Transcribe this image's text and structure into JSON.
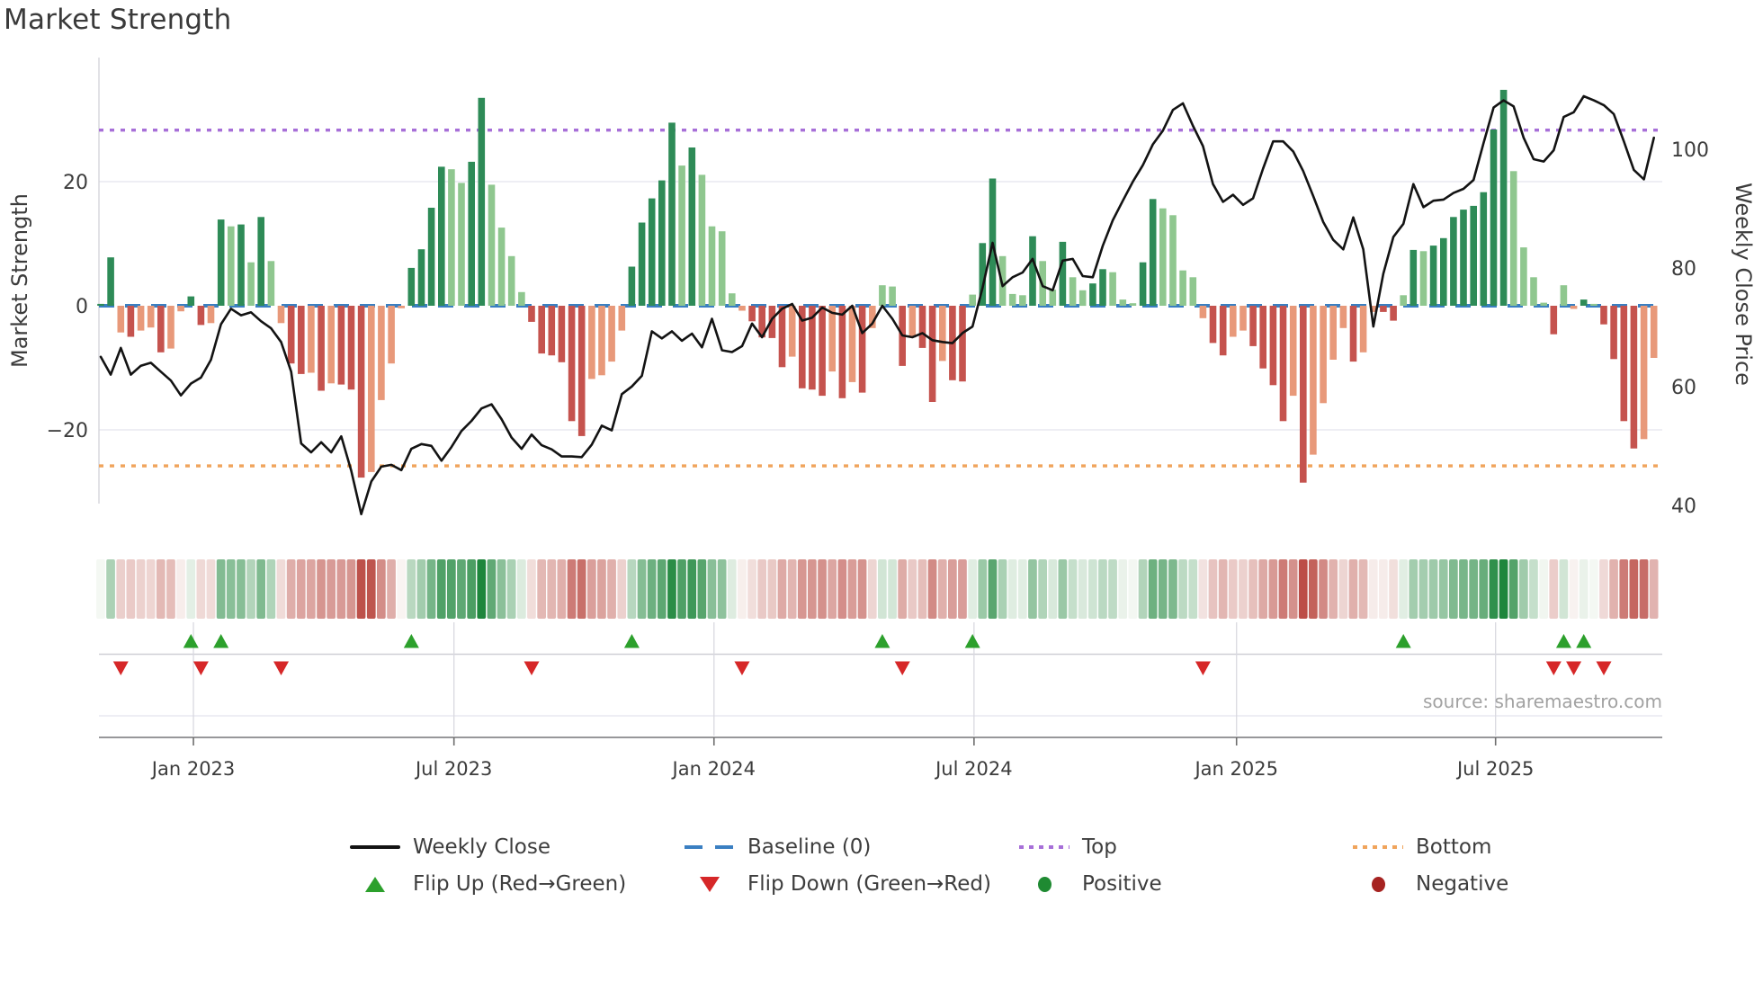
{
  "title": "Market Strength",
  "source": "source: sharemaestro.com",
  "axes": {
    "left_label": "Market Strength",
    "right_label": "Weekly Close Price",
    "left_ticks": [
      "20",
      "0",
      "−20"
    ],
    "right_ticks": [
      "100",
      "80",
      "60",
      "40"
    ],
    "x_ticks": [
      "Jan 2023",
      "Jul 2023",
      "Jan 2024",
      "Jul 2024",
      "Jan 2025",
      "Jul 2025"
    ]
  },
  "legend": {
    "weekly_close": "Weekly Close",
    "baseline": "Baseline (0)",
    "top": "Top",
    "bottom": "Bottom",
    "flip_up": "Flip Up (Red→Green)",
    "flip_down": "Flip Down (Green→Red)",
    "positive": "Positive",
    "negative": "Negative"
  },
  "chart_data": {
    "type": "combo",
    "title": "Market Strength",
    "subtype": "weekly bar oscillator + price line + intensity heatmap + flip markers",
    "x_unit": "week",
    "n_weeks": 156,
    "x_span_note": "~156 weekly observations, Nov 2022 - Oct 2025",
    "x_tick_labels": [
      "Jan 2023",
      "Jul 2023",
      "Jan 2024",
      "Jul 2024",
      "Jan 2025",
      "Jul 2025"
    ],
    "x_tick_weeks": [
      9.25,
      35.25,
      61.2,
      87.15,
      113.35,
      139.2
    ],
    "left_axis": {
      "label": "Market Strength",
      "ticks": [
        20,
        0,
        -20
      ],
      "lim": [
        -40,
        40
      ],
      "grid": [
        20,
        -20
      ]
    },
    "right_axis": {
      "label": "Weekly Close Price",
      "ticks": [
        100,
        80,
        60,
        40
      ],
      "lim": [
        32,
        115.4
      ]
    },
    "baseline": 0,
    "top_line": 28.3,
    "bottom_line": -25.8,
    "legend_position": "bottom, two rows, four columns",
    "series": [
      {
        "name": "Market Strength",
        "type": "bar",
        "axis": "left",
        "values": [
          0.3,
          7.8,
          -4.3,
          -5.0,
          -4.0,
          -3.5,
          -7.5,
          -6.9,
          -0.9,
          1.5,
          -3.1,
          -2.8,
          13.9,
          12.8,
          13.1,
          7.0,
          14.3,
          7.2,
          -2.8,
          -9.3,
          -11.0,
          -10.8,
          -13.7,
          -12.5,
          -12.7,
          -13.5,
          -27.7,
          -26.8,
          -15.2,
          -9.3,
          -0.4,
          6.1,
          9.1,
          15.8,
          22.4,
          22.0,
          19.8,
          23.2,
          33.5,
          19.5,
          12.6,
          8.0,
          2.2,
          -2.6,
          -7.7,
          -8.0,
          -9.1,
          -18.6,
          -21.0,
          -11.8,
          -11.2,
          -9.0,
          -4.0,
          6.3,
          13.4,
          17.3,
          20.2,
          29.5,
          22.6,
          25.5,
          21.1,
          12.8,
          12.0,
          2.0,
          -0.8,
          -2.5,
          -5.1,
          -5.2,
          -9.9,
          -8.2,
          -13.3,
          -13.5,
          -14.5,
          -10.6,
          -14.9,
          -12.3,
          -14.0,
          -3.6,
          3.3,
          3.1,
          -9.7,
          -5.1,
          -6.8,
          -15.5,
          -8.9,
          -12.0,
          -12.2,
          1.8,
          10.1,
          20.5,
          8.0,
          1.9,
          1.7,
          11.2,
          7.2,
          2.6,
          10.3,
          4.6,
          2.5,
          3.6,
          5.9,
          5.4,
          1.0,
          0.4,
          7.0,
          17.2,
          15.7,
          14.6,
          5.7,
          4.6,
          -2.0,
          -6.0,
          -8.0,
          -5.0,
          -4.0,
          -6.5,
          -10.1,
          -12.8,
          -18.6,
          -14.5,
          -28.5,
          -24.0,
          -15.7,
          -8.7,
          -3.6,
          -9.0,
          -7.5,
          -1.0,
          -1.0,
          -2.4,
          1.7,
          9.0,
          8.8,
          9.7,
          10.9,
          14.3,
          15.5,
          16.1,
          18.3,
          28.4,
          34.8,
          21.7,
          9.4,
          4.6,
          0.5,
          -4.6,
          3.3,
          -0.5,
          1.0,
          0.3,
          -3.0,
          -8.6,
          -18.6,
          -23.0,
          -21.5,
          -8.4
        ]
      },
      {
        "name": "Weekly Close",
        "type": "line",
        "axis": "right",
        "values": [
          65.0,
          62.0,
          66.5,
          62.0,
          63.5,
          64.0,
          62.5,
          61.0,
          58.5,
          60.5,
          61.5,
          64.5,
          70.5,
          73.1,
          72.0,
          72.5,
          71.0,
          69.8,
          67.5,
          62.5,
          50.4,
          48.9,
          50.6,
          48.9,
          51.6,
          45.8,
          38.5,
          44.0,
          46.5,
          46.8,
          45.9,
          49.5,
          50.3,
          50.0,
          47.5,
          49.8,
          52.5,
          54.2,
          56.3,
          57.0,
          54.5,
          51.4,
          49.5,
          51.9,
          50.1,
          49.4,
          48.2,
          48.2,
          48.1,
          50.2,
          53.4,
          52.6,
          58.7,
          60.0,
          61.8,
          69.3,
          68.1,
          69.3,
          67.7,
          68.9,
          66.6,
          71.4,
          66.1,
          65.8,
          66.8,
          70.6,
          68.3,
          71.4,
          73.1,
          73.9,
          71.1,
          71.6,
          73.3,
          72.4,
          72.1,
          73.6,
          69.0,
          70.6,
          73.6,
          71.4,
          68.6,
          68.3,
          69.0,
          67.8,
          67.5,
          67.3,
          69.0,
          70.1,
          76.6,
          84.2,
          76.9,
          78.4,
          79.2,
          81.5,
          76.9,
          76.2,
          81.2,
          81.5,
          78.6,
          78.4,
          83.7,
          88.0,
          91.3,
          94.5,
          97.3,
          100.8,
          103.1,
          106.6,
          107.7,
          103.9,
          100.5,
          94.1,
          91.1,
          92.3,
          90.6,
          91.7,
          96.7,
          101.3,
          101.3,
          99.6,
          96.3,
          92.1,
          87.7,
          84.7,
          83.1,
          88.5,
          83.1,
          70.1,
          79.0,
          85.2,
          87.4,
          94.1,
          90.2,
          91.3,
          91.5,
          92.6,
          93.3,
          94.8,
          101.0,
          107.0,
          108.2,
          107.2,
          101.9,
          98.3,
          97.9,
          99.8,
          105.4,
          106.2,
          108.9,
          108.2,
          107.4,
          105.9,
          101.3,
          96.5,
          94.9,
          101.9
        ]
      }
    ],
    "flip_up_weeks": [
      9,
      12,
      31,
      53,
      78,
      87,
      130,
      146,
      148
    ],
    "flip_down_weeks": [
      2,
      10,
      18,
      43,
      64,
      80,
      110,
      145,
      147,
      150
    ],
    "heatmap_note": "one cell per week below main panel; hue = sign of strength (green/red), intensity = |strength|",
    "colors": {
      "bar_pos_strong": "#2e8b57",
      "bar_pos_weak": "#8fc78f",
      "bar_neg_strong": "#c5534e",
      "bar_neg_weak": "#e8997a",
      "price_line": "#131313",
      "baseline": "#3a7fc2",
      "top_line": "#a76fd8",
      "bottom_line": "#f0a45c",
      "flip_up": "#2ca02c",
      "flip_down": "#d62728",
      "positive_dot": "#1f8a32",
      "negative_dot": "#a62321",
      "grid": "#e9e9f0",
      "panel_line": "#cfcfd6",
      "axis_line": "#757578",
      "heat_green_max": "#1e863c",
      "heat_red_max": "#b63e37"
    }
  }
}
